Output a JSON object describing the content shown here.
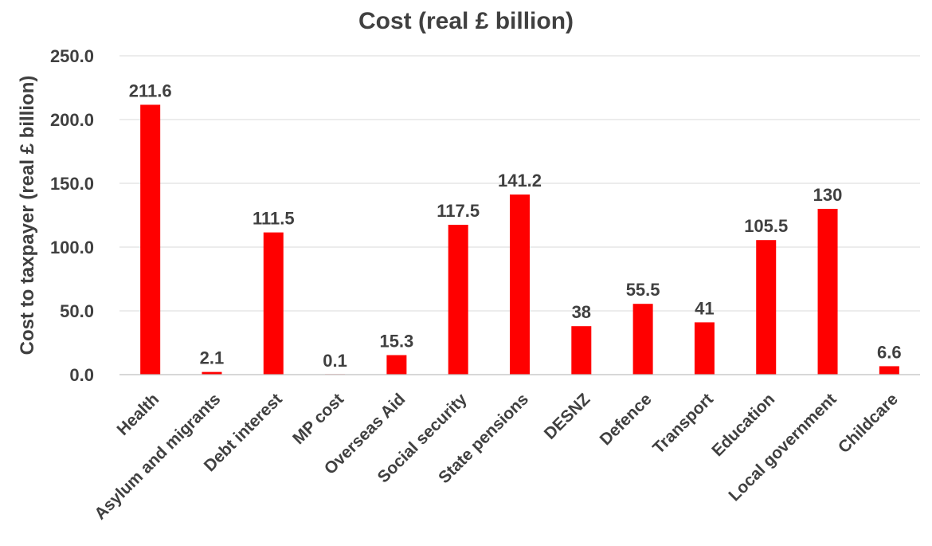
{
  "chart_data": {
    "type": "bar",
    "title": "Cost (real £ billion)",
    "xlabel": "",
    "ylabel": "Cost to taxpayer (real £ billion)",
    "categories": [
      "Health",
      "Asylum and migrants",
      "Debt interest",
      "MP cost",
      "Overseas Aid",
      "Social security",
      "State pensions",
      "DESNZ",
      "Defence",
      "Transport",
      "Education",
      "Local government",
      "Childcare"
    ],
    "values": [
      211.6,
      2.1,
      111.5,
      0.1,
      15.3,
      117.5,
      141.2,
      38,
      55.5,
      41,
      105.5,
      130,
      6.6
    ],
    "data_labels": [
      "211.6",
      "2.1",
      "111.5",
      "0.1",
      "15.3",
      "117.5",
      "141.2",
      "38",
      "55.5",
      "41",
      "105.5",
      "130",
      "6.6"
    ],
    "yticks": [
      "0.0",
      "50.0",
      "100.0",
      "150.0",
      "200.0",
      "250.0"
    ],
    "ylim": [
      0,
      250
    ],
    "grid": true,
    "legend": "none",
    "bar_color": "#ff0000"
  }
}
